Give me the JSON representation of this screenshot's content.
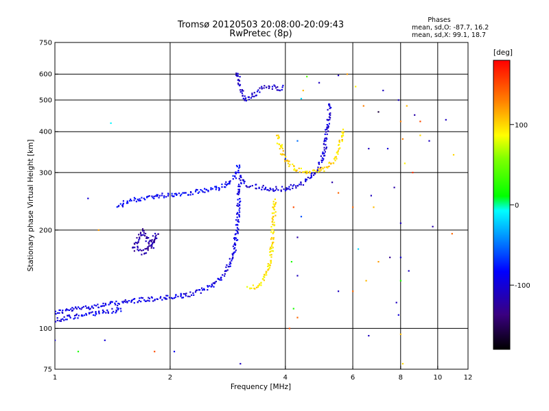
{
  "chart_data": {
    "type": "scatter",
    "title": "Tromsø 20120503 20:08:00-20:09:43",
    "subtitle": "RwPretec (8p)",
    "xlabel": "Frequency [MHz]",
    "ylabel": "Stationary phase Virtual Height [km]",
    "x_scale": "log",
    "y_scale": "log",
    "xlim": [
      1,
      12
    ],
    "ylim": [
      75,
      750
    ],
    "grid": true,
    "x_ticks": [
      "1",
      "2",
      "4",
      "6",
      "8",
      "10",
      "12"
    ],
    "x_grid_values": [
      2,
      4,
      6,
      8,
      10
    ],
    "y_ticks": [
      "75",
      "100",
      "200",
      "300",
      "400",
      "500",
      "600",
      "750"
    ],
    "y_grid_values": [
      100,
      200,
      300,
      400,
      500,
      600
    ],
    "legend_box": {
      "heading": "Phases",
      "line1": "mean, sd,O: -87.7, 16.2",
      "line2": "mean, sd,X:  99.1, 18.7"
    },
    "colorbar": {
      "unit": "[deg]",
      "range": [
        -180,
        180
      ],
      "ticks": [
        "100",
        "0",
        "-100"
      ]
    },
    "traces": [
      {
        "id": "O-E-cusp",
        "phase": -95,
        "points": [
          [
            1.0,
            112
          ],
          [
            1.1,
            114
          ],
          [
            1.2,
            116
          ],
          [
            1.35,
            118
          ],
          [
            1.5,
            120
          ],
          [
            1.65,
            122
          ],
          [
            1.8,
            123
          ],
          [
            1.95,
            124
          ],
          [
            2.1,
            125
          ],
          [
            2.25,
            127
          ],
          [
            2.4,
            130
          ],
          [
            2.55,
            135
          ],
          [
            2.7,
            142
          ],
          [
            2.8,
            150
          ],
          [
            2.88,
            160
          ],
          [
            2.94,
            175
          ],
          [
            2.98,
            195
          ],
          [
            3.0,
            215
          ],
          [
            3.02,
            240
          ],
          [
            3.03,
            262
          ],
          [
            3.04,
            280
          ]
        ]
      },
      {
        "id": "O-lower-echoes",
        "phase": -90,
        "points": [
          [
            1.0,
            106
          ],
          [
            1.1,
            108
          ],
          [
            1.2,
            110
          ],
          [
            1.3,
            112
          ],
          [
            1.4,
            113
          ],
          [
            1.5,
            115
          ]
        ]
      },
      {
        "id": "O-F-low-branch",
        "phase": -85,
        "points": [
          [
            1.45,
            236
          ],
          [
            1.55,
            244
          ],
          [
            1.65,
            249
          ],
          [
            1.8,
            253
          ],
          [
            1.95,
            256
          ],
          [
            2.1,
            258
          ],
          [
            2.3,
            261
          ],
          [
            2.5,
            264
          ],
          [
            2.7,
            270
          ],
          [
            2.85,
            278
          ],
          [
            2.95,
            290
          ],
          [
            3.0,
            305
          ],
          [
            3.02,
            320
          ]
        ]
      },
      {
        "id": "O-F2-trace",
        "phase": -100,
        "points": [
          [
            3.0,
            300
          ],
          [
            3.1,
            282
          ],
          [
            3.2,
            275
          ],
          [
            3.4,
            270
          ],
          [
            3.6,
            268
          ],
          [
            3.8,
            267
          ],
          [
            4.0,
            268
          ],
          [
            4.2,
            271
          ],
          [
            4.4,
            277
          ],
          [
            4.6,
            286
          ],
          [
            4.8,
            300
          ],
          [
            4.95,
            322
          ],
          [
            5.05,
            350
          ],
          [
            5.12,
            390
          ],
          [
            5.18,
            440
          ],
          [
            5.22,
            490
          ]
        ]
      },
      {
        "id": "O-top-cluster",
        "phase": -105,
        "points": [
          [
            3.0,
            610
          ],
          [
            3.02,
            580
          ],
          [
            3.05,
            550
          ],
          [
            3.08,
            525
          ],
          [
            3.12,
            505
          ],
          [
            3.18,
            500
          ],
          [
            3.3,
            520
          ],
          [
            3.5,
            545
          ],
          [
            3.7,
            550
          ],
          [
            3.9,
            540
          ],
          [
            4.0,
            548
          ]
        ]
      },
      {
        "id": "X-E-cusp",
        "phase": 95,
        "points": [
          [
            3.2,
            133
          ],
          [
            3.35,
            134
          ],
          [
            3.5,
            140
          ],
          [
            3.6,
            150
          ],
          [
            3.66,
            165
          ],
          [
            3.7,
            185
          ],
          [
            3.72,
            210
          ],
          [
            3.74,
            235
          ],
          [
            3.75,
            250
          ]
        ]
      },
      {
        "id": "X-F2-trace",
        "phase": 100,
        "points": [
          [
            3.8,
            390
          ],
          [
            3.88,
            360
          ],
          [
            3.95,
            335
          ],
          [
            4.1,
            318
          ],
          [
            4.3,
            308
          ],
          [
            4.5,
            303
          ],
          [
            4.7,
            302
          ],
          [
            4.9,
            304
          ],
          [
            5.1,
            310
          ],
          [
            5.25,
            320
          ],
          [
            5.4,
            335
          ],
          [
            5.52,
            355
          ],
          [
            5.6,
            385
          ],
          [
            5.65,
            410
          ]
        ]
      },
      {
        "id": "O-spread-cluster",
        "phase": -120,
        "points": [
          [
            1.6,
            175
          ],
          [
            1.65,
            190
          ],
          [
            1.7,
            200
          ],
          [
            1.75,
            185
          ],
          [
            1.8,
            178
          ],
          [
            1.85,
            195
          ],
          [
            1.7,
            170
          ],
          [
            1.62,
            182
          ]
        ]
      }
    ],
    "scatter_points": [
      [
        1.4,
        425,
        -10
      ],
      [
        1.3,
        200,
        120
      ],
      [
        1.22,
        250,
        -100
      ],
      [
        1.0,
        92,
        -100
      ],
      [
        1.35,
        92,
        -100
      ],
      [
        1.15,
        85,
        20
      ],
      [
        1.82,
        85,
        150
      ],
      [
        2.05,
        85,
        -90
      ],
      [
        3.05,
        78,
        -110
      ],
      [
        4.1,
        100,
        150
      ],
      [
        4.2,
        115,
        20
      ],
      [
        4.3,
        145,
        -110
      ],
      [
        4.15,
        160,
        20
      ],
      [
        4.4,
        220,
        -60
      ],
      [
        4.3,
        375,
        -50
      ],
      [
        4.4,
        505,
        -20
      ],
      [
        4.45,
        535,
        110
      ],
      [
        4.55,
        590,
        40
      ],
      [
        4.9,
        565,
        -110
      ],
      [
        5.5,
        595,
        -110
      ],
      [
        5.8,
        600,
        120
      ],
      [
        6.1,
        550,
        90
      ],
      [
        5.3,
        280,
        -120
      ],
      [
        4.3,
        190,
        -120
      ],
      [
        5.5,
        260,
        140
      ],
      [
        6.0,
        235,
        140
      ],
      [
        6.4,
        480,
        130
      ],
      [
        6.6,
        355,
        -110
      ],
      [
        6.7,
        255,
        -110
      ],
      [
        6.8,
        235,
        110
      ],
      [
        7.0,
        460,
        -160
      ],
      [
        7.2,
        535,
        -110
      ],
      [
        7.4,
        355,
        -100
      ],
      [
        7.5,
        165,
        -130
      ],
      [
        7.9,
        500,
        -110
      ],
      [
        8.0,
        430,
        130
      ],
      [
        8.1,
        380,
        130
      ],
      [
        8.2,
        320,
        90
      ],
      [
        8.3,
        480,
        110
      ],
      [
        8.6,
        300,
        160
      ],
      [
        8.7,
        450,
        -120
      ],
      [
        9.0,
        430,
        150
      ],
      [
        9.5,
        375,
        -110
      ],
      [
        9.7,
        205,
        -120
      ],
      [
        10.5,
        435,
        -110
      ],
      [
        10.9,
        195,
        140
      ],
      [
        11.0,
        340,
        100
      ],
      [
        8.0,
        210,
        -110
      ],
      [
        8.0,
        165,
        -100
      ],
      [
        8.0,
        140,
        20
      ],
      [
        7.8,
        120,
        -110
      ],
      [
        7.9,
        110,
        -100
      ],
      [
        8.0,
        96,
        110
      ],
      [
        8.1,
        78,
        100
      ],
      [
        6.6,
        95,
        -110
      ],
      [
        6.0,
        130,
        140
      ],
      [
        5.5,
        130,
        -110
      ],
      [
        4.3,
        108,
        140
      ],
      [
        4.2,
        235,
        150
      ],
      [
        4.0,
        330,
        -70
      ],
      [
        6.5,
        140,
        110
      ],
      [
        6.2,
        175,
        -20
      ],
      [
        7.0,
        160,
        120
      ],
      [
        8.4,
        150,
        -110
      ],
      [
        9.0,
        390,
        100
      ],
      [
        7.7,
        270,
        -120
      ]
    ]
  }
}
